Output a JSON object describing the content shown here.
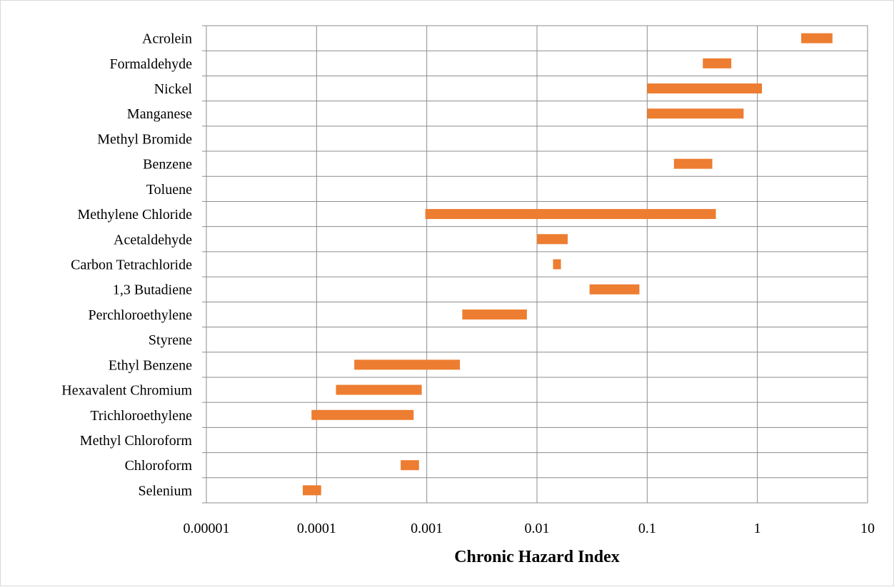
{
  "chart_data": {
    "type": "bar",
    "subtype": "floating-range-horizontal",
    "title": "",
    "xlabel": "Chronic Hazard Index",
    "ylabel": "",
    "x_scale": "log",
    "xlim": [
      1e-05,
      10
    ],
    "x_ticks": [
      "0.00001",
      "0.0001",
      "0.001",
      "0.01",
      "0.1",
      "1",
      "10"
    ],
    "grid": true,
    "legend": "none",
    "bar_color": "#ED7D31",
    "categories": [
      "Acrolein",
      "Formaldehyde",
      "Nickel",
      "Manganese",
      "Methyl Bromide",
      "Benzene",
      "Toluene",
      "Methylene Chloride",
      "Acetaldehyde",
      "Carbon Tetrachloride",
      "1,3 Butadiene",
      "Perchloroethylene",
      "Styrene",
      "Ethyl Benzene",
      "Hexavalent Chromium",
      "Trichloroethylene",
      "Methyl Chloroform",
      "Chloroform",
      "Selenium"
    ],
    "ranges": [
      [
        2.5,
        4.8
      ],
      [
        0.32,
        0.58
      ],
      [
        0.1,
        1.1
      ],
      [
        0.1,
        0.75
      ],
      null,
      [
        0.175,
        0.39
      ],
      null,
      [
        0.00097,
        0.42
      ],
      [
        0.01,
        0.019
      ],
      [
        0.014,
        0.0165
      ],
      [
        0.03,
        0.085
      ],
      [
        0.0021,
        0.0081
      ],
      null,
      [
        0.00022,
        0.002
      ],
      [
        0.00015,
        0.0009
      ],
      [
        9e-05,
        0.00076
      ],
      null,
      [
        0.00058,
        0.00085
      ],
      [
        7.5e-05,
        0.00011
      ]
    ]
  }
}
